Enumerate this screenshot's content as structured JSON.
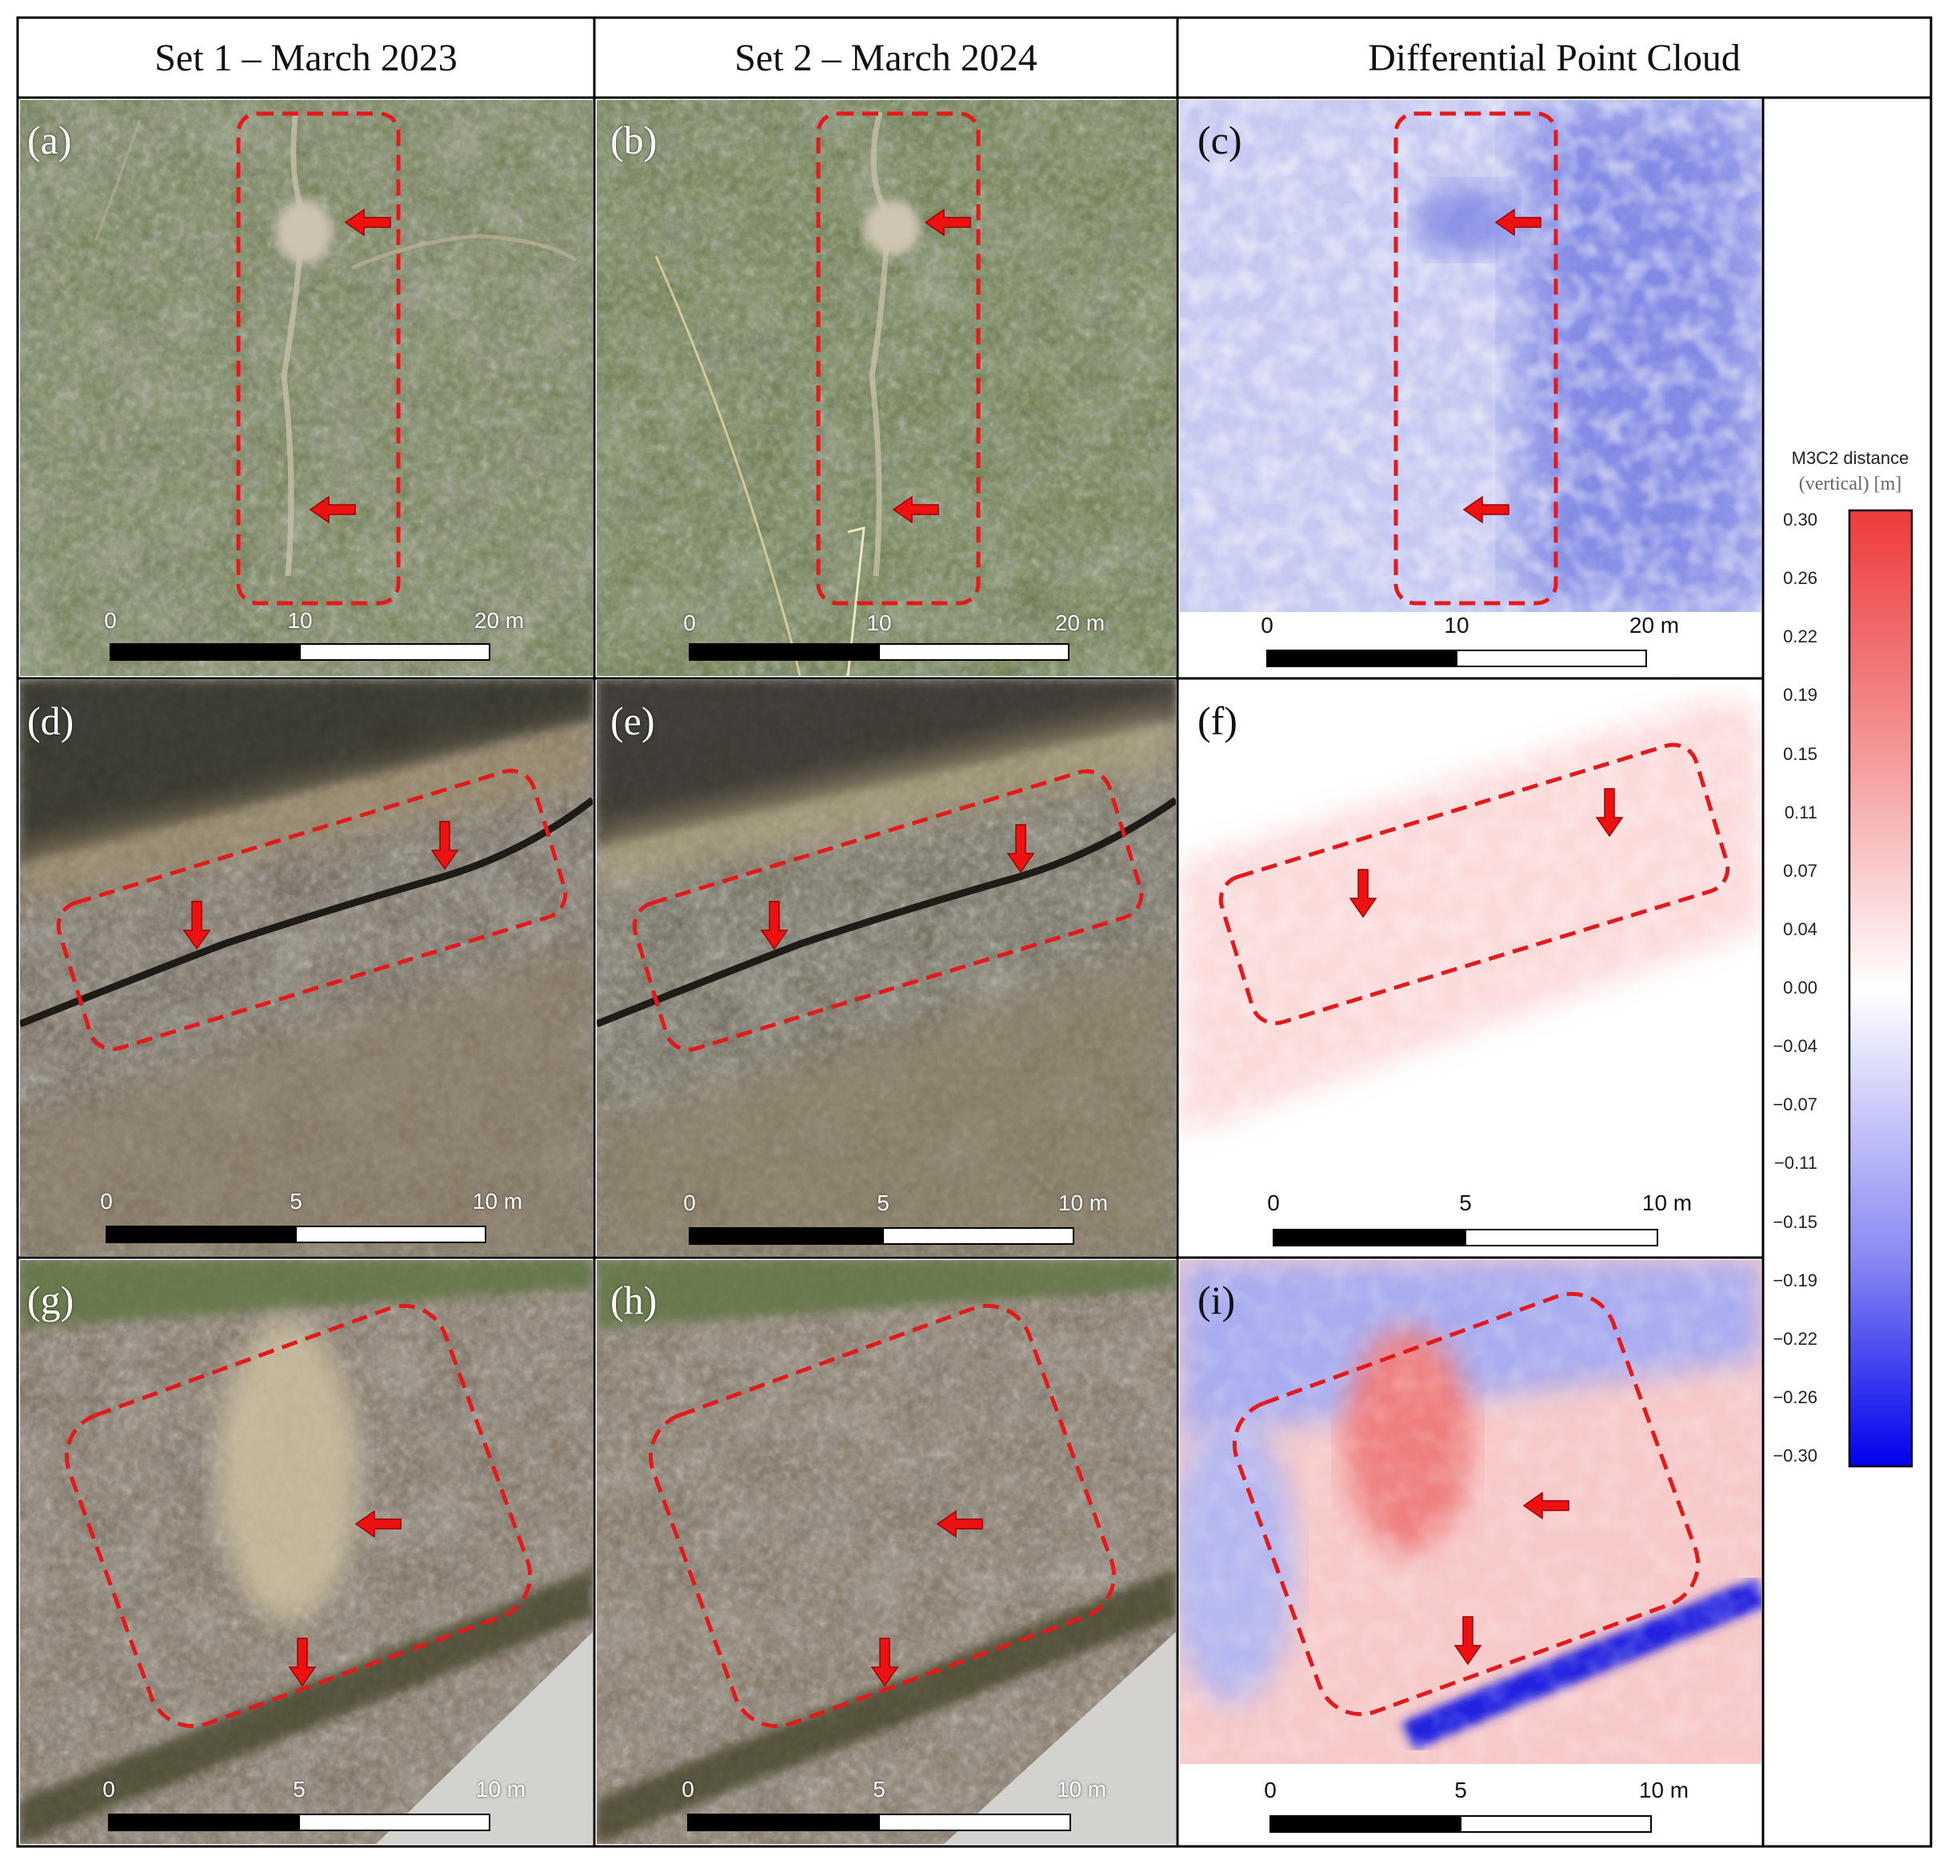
{
  "headers": {
    "set1": "Set 1 – March 2023",
    "set2": "Set 2 – March 2024",
    "diff": "Differential Point Cloud"
  },
  "panels": {
    "a": "(a)",
    "b": "(b)",
    "c": "(c)",
    "d": "(d)",
    "e": "(e)",
    "f": "(f)",
    "g": "(g)",
    "h": "(h)",
    "i": "(i)"
  },
  "scale_bars": {
    "row1": [
      "0",
      "10",
      "20 m"
    ],
    "row2": [
      "0",
      "5",
      "10 m"
    ],
    "row3": [
      "0",
      "5",
      "10 m"
    ]
  },
  "colorbar": {
    "title": "M3C2 distance",
    "subtitle": "(vertical) [m]",
    "ticks": [
      "0.30",
      "0.26",
      "0.22",
      "0.19",
      "0.15",
      "0.11",
      "0.07",
      "0.04",
      "0.00",
      "-0.04",
      "-0.07",
      "-0.11",
      "-0.15",
      "-0.19",
      "-0.22",
      "-0.26",
      "-0.30"
    ],
    "colors": {
      "max": "#ee3b3b",
      "mid": "#ffffff",
      "min": "#0000ee"
    }
  },
  "colors": {
    "roi_outline": "#e31a1c",
    "arrow": "#ee1111",
    "grass": "#6c7a46",
    "soil": "#7c6a55"
  }
}
